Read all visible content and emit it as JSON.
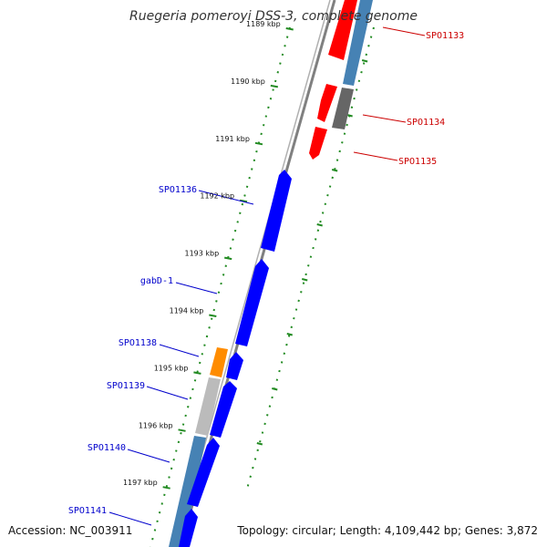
{
  "title": "Ruegeria pomeroyi DSS-3, complete genome",
  "accession": "Accession: NC_003911",
  "summary": "Topology: circular; Length: 4,109,442 bp; Genes: 3,872",
  "colors": {
    "forward_gene": "#0000ff",
    "reverse_gene": "#ff0000",
    "grey_gene": "#666666",
    "orange_gene": "#ff8c00",
    "light_grey_gene": "#bbbbbb",
    "steelblue_gene": "#4682b4",
    "backbone": "#808080",
    "ticks": "#228b22",
    "forward_label": "#0000cc",
    "reverse_label": "#cc0000"
  },
  "ticks": [
    "1189 kbp",
    "1190 kbp",
    "1191 kbp",
    "1192 kbp",
    "1193 kbp",
    "1194 kbp",
    "1195 kbp",
    "1196 kbp",
    "1197 kbp"
  ],
  "genes_reverse": [
    {
      "label": "SPO1133",
      "color": "reverse_gene"
    },
    {
      "label": "SPO1134",
      "color": "reverse_gene"
    },
    {
      "label": "SPO1135",
      "color": "reverse_gene"
    }
  ],
  "genes_forward": [
    {
      "label": "SPO1136",
      "color": "forward_gene"
    },
    {
      "label": "gabD-1",
      "color": "forward_gene"
    },
    {
      "label": "SPO1138",
      "color": "forward_gene"
    },
    {
      "label": "SPO1139",
      "color": "forward_gene"
    },
    {
      "label": "SPO1140",
      "color": "forward_gene"
    },
    {
      "label": "SPO1141",
      "color": "forward_gene"
    }
  ]
}
